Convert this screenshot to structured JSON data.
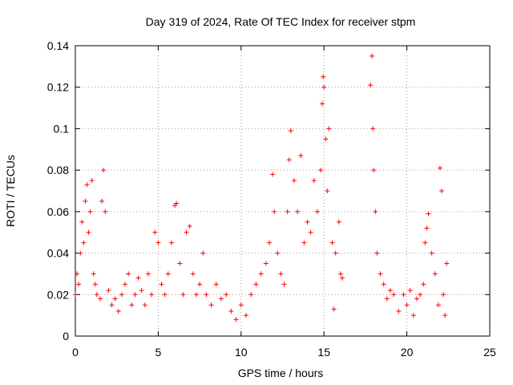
{
  "chart_data": {
    "type": "scatter",
    "title": "Day 319 of 2024, Rate Of TEC Index for receiver stpm",
    "xlabel": "GPS time / hours",
    "ylabel": "ROTI / TECUs",
    "xlim": [
      0,
      25
    ],
    "ylim": [
      0,
      0.14
    ],
    "x_ticks": [
      "0",
      "5",
      "10",
      "15",
      "20",
      "25"
    ],
    "x_tick_values": [
      0,
      5,
      10,
      15,
      20,
      25
    ],
    "y_ticks": [
      "0",
      "0.02",
      "0.04",
      "0.06",
      "0.08",
      "0.1",
      "0.12",
      "0.14"
    ],
    "y_tick_values": [
      0,
      0.02,
      0.04,
      0.06,
      0.08,
      0.1,
      0.12,
      0.14
    ],
    "grid": true,
    "marker": "+",
    "color": "#ff0000",
    "series": [
      {
        "name": "ROTI",
        "points": [
          [
            0.0,
            0.02
          ],
          [
            0.1,
            0.03
          ],
          [
            0.2,
            0.025
          ],
          [
            0.3,
            0.04
          ],
          [
            0.4,
            0.055
          ],
          [
            0.5,
            0.045
          ],
          [
            0.6,
            0.065
          ],
          [
            0.7,
            0.073
          ],
          [
            0.8,
            0.05
          ],
          [
            0.9,
            0.06
          ],
          [
            1.0,
            0.075
          ],
          [
            1.1,
            0.03
          ],
          [
            1.2,
            0.025
          ],
          [
            1.3,
            0.02
          ],
          [
            1.5,
            0.018
          ],
          [
            1.6,
            0.065
          ],
          [
            1.7,
            0.08
          ],
          [
            1.8,
            0.06
          ],
          [
            2.0,
            0.022
          ],
          [
            2.2,
            0.015
          ],
          [
            2.4,
            0.018
          ],
          [
            2.6,
            0.012
          ],
          [
            2.8,
            0.02
          ],
          [
            3.0,
            0.025
          ],
          [
            3.2,
            0.03
          ],
          [
            3.4,
            0.015
          ],
          [
            3.6,
            0.02
          ],
          [
            3.8,
            0.028
          ],
          [
            4.0,
            0.022
          ],
          [
            4.2,
            0.015
          ],
          [
            4.4,
            0.03
          ],
          [
            4.6,
            0.02
          ],
          [
            4.8,
            0.05
          ],
          [
            5.0,
            0.045
          ],
          [
            5.2,
            0.025
          ],
          [
            5.4,
            0.02
          ],
          [
            5.6,
            0.03
          ],
          [
            5.8,
            0.045
          ],
          [
            6.0,
            0.063
          ],
          [
            6.1,
            0.064
          ],
          [
            6.3,
            0.035
          ],
          [
            6.5,
            0.02
          ],
          [
            6.7,
            0.05
          ],
          [
            6.9,
            0.053
          ],
          [
            7.1,
            0.03
          ],
          [
            7.3,
            0.02
          ],
          [
            7.5,
            0.025
          ],
          [
            7.7,
            0.04
          ],
          [
            7.9,
            0.02
          ],
          [
            8.2,
            0.015
          ],
          [
            8.5,
            0.025
          ],
          [
            8.8,
            0.018
          ],
          [
            9.1,
            0.02
          ],
          [
            9.4,
            0.012
          ],
          [
            9.7,
            0.008
          ],
          [
            10.0,
            0.015
          ],
          [
            10.3,
            0.01
          ],
          [
            10.6,
            0.02
          ],
          [
            10.9,
            0.025
          ],
          [
            11.2,
            0.03
          ],
          [
            11.5,
            0.035
          ],
          [
            11.7,
            0.045
          ],
          [
            11.9,
            0.078
          ],
          [
            12.0,
            0.06
          ],
          [
            12.2,
            0.04
          ],
          [
            12.4,
            0.03
          ],
          [
            12.6,
            0.025
          ],
          [
            12.8,
            0.06
          ],
          [
            12.9,
            0.085
          ],
          [
            13.0,
            0.099
          ],
          [
            13.2,
            0.075
          ],
          [
            13.4,
            0.06
          ],
          [
            13.6,
            0.087
          ],
          [
            13.8,
            0.045
          ],
          [
            14.0,
            0.055
          ],
          [
            14.2,
            0.05
          ],
          [
            14.4,
            0.075
          ],
          [
            14.6,
            0.06
          ],
          [
            14.8,
            0.08
          ],
          [
            14.9,
            0.112
          ],
          [
            14.95,
            0.125
          ],
          [
            15.0,
            0.12
          ],
          [
            15.1,
            0.095
          ],
          [
            15.2,
            0.07
          ],
          [
            15.3,
            0.1
          ],
          [
            15.5,
            0.045
          ],
          [
            15.6,
            0.013
          ],
          [
            15.7,
            0.04
          ],
          [
            15.9,
            0.055
          ],
          [
            16.0,
            0.03
          ],
          [
            16.1,
            0.028
          ],
          [
            17.8,
            0.121
          ],
          [
            17.9,
            0.135
          ],
          [
            17.95,
            0.1
          ],
          [
            18.0,
            0.08
          ],
          [
            18.1,
            0.06
          ],
          [
            18.2,
            0.04
          ],
          [
            18.4,
            0.03
          ],
          [
            18.6,
            0.025
          ],
          [
            18.8,
            0.018
          ],
          [
            19.0,
            0.022
          ],
          [
            19.2,
            0.02
          ],
          [
            19.5,
            0.012
          ],
          [
            19.8,
            0.02
          ],
          [
            20.0,
            0.015
          ],
          [
            20.2,
            0.022
          ],
          [
            20.4,
            0.01
          ],
          [
            20.6,
            0.018
          ],
          [
            20.8,
            0.02
          ],
          [
            21.0,
            0.025
          ],
          [
            21.1,
            0.045
          ],
          [
            21.2,
            0.052
          ],
          [
            21.3,
            0.059
          ],
          [
            21.5,
            0.04
          ],
          [
            21.7,
            0.03
          ],
          [
            21.9,
            0.015
          ],
          [
            22.0,
            0.081
          ],
          [
            22.1,
            0.07
          ],
          [
            22.2,
            0.02
          ],
          [
            22.3,
            0.01
          ],
          [
            22.4,
            0.035
          ]
        ]
      }
    ]
  }
}
